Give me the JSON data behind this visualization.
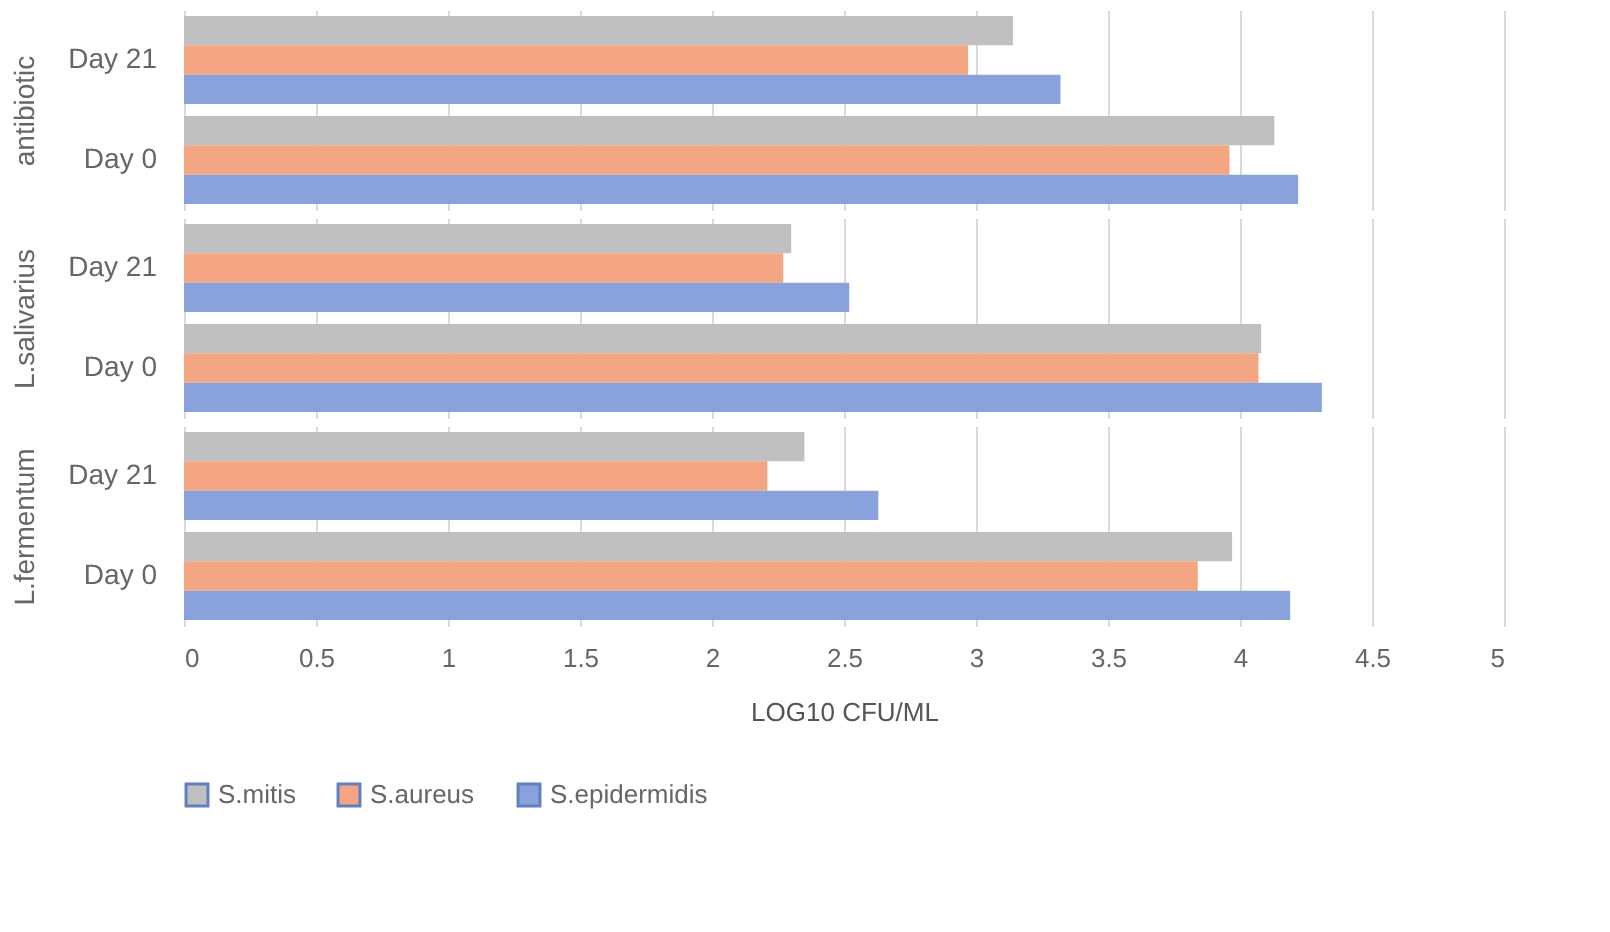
{
  "chart_data": [
    {
      "type": "bar",
      "orientation": "horizontal",
      "ylabel": "antibiotic",
      "categories": [
        "Day 21",
        "Day 0"
      ],
      "xlim": [
        0,
        5
      ],
      "xticks": [
        0,
        0.5,
        1,
        1.5,
        2,
        2.5,
        3,
        3.5,
        4,
        4.5,
        5
      ],
      "grid": "x",
      "tick_labels": "y",
      "legend": false,
      "series": [
        {
          "color": "#c0c0c0",
          "values": [
            3.14,
            4.13
          ]
        },
        {
          "color": "#f4a582",
          "values": [
            2.97,
            3.96
          ]
        },
        {
          "color": "#8aa2dc",
          "values": [
            3.32,
            4.22
          ]
        }
      ]
    },
    {
      "type": "bar",
      "orientation": "horizontal",
      "ylabel": "L.salivarius",
      "categories": [
        "Day 21",
        "Day 0"
      ],
      "xlim": [
        0,
        5
      ],
      "xticks": [
        0,
        0.5,
        1,
        1.5,
        2,
        2.5,
        3,
        3.5,
        4,
        4.5,
        5
      ],
      "grid": "x",
      "tick_labels": "y",
      "legend": false,
      "series": [
        {
          "color": "#c0c0c0",
          "values": [
            2.3,
            4.08
          ]
        },
        {
          "color": "#f4a582",
          "values": [
            2.27,
            4.07
          ]
        },
        {
          "color": "#8aa2dc",
          "values": [
            2.52,
            4.31
          ]
        }
      ]
    },
    {
      "type": "bar",
      "orientation": "horizontal",
      "ylabel": "L.fermentum",
      "xlabel": "LOG10 CFU/ML",
      "categories": [
        "Day 21",
        "Day 0"
      ],
      "xlim": [
        0,
        5
      ],
      "xticks": [
        0,
        0.5,
        1,
        1.5,
        2,
        2.5,
        3,
        3.5,
        4,
        4.5,
        5
      ],
      "grid": "x",
      "legend": "bottom",
      "series": [
        {
          "name": "S.mitis",
          "color": "#c0c0c0",
          "values": [
            2.35,
            3.97
          ]
        },
        {
          "name": "S.aureus",
          "color": "#f4a582",
          "values": [
            2.21,
            3.84
          ]
        },
        {
          "name": "S.epidermidis",
          "color": "#8aa2dc",
          "values": [
            2.63,
            4.19
          ]
        }
      ]
    }
  ]
}
